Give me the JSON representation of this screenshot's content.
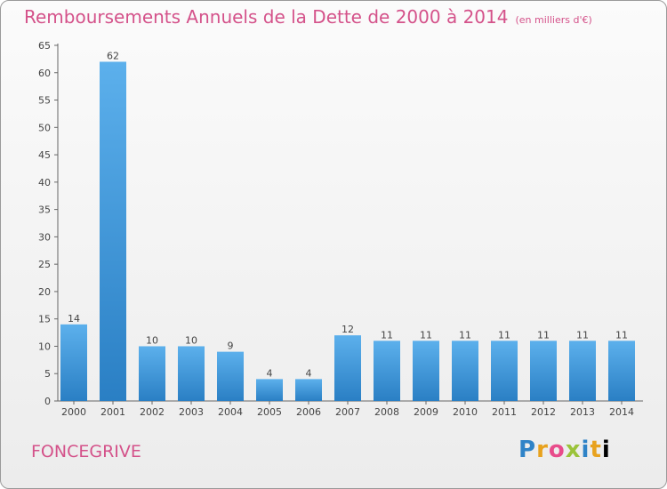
{
  "title": "Remboursements Annuels de la Dette de 2000 à 2014",
  "unit_note": "(en milliers d'€)",
  "commune": "FONCEGRIVE",
  "logo_text": "Proxiti",
  "colors": {
    "title": "#d4528a",
    "bar_light": "#5aaeea",
    "bar_dark": "#2a7fc4",
    "axis": "#555555",
    "grid": "#dddddd"
  },
  "chart_data": {
    "type": "bar",
    "title": "Remboursements Annuels de la Dette de 2000 à 2014",
    "xlabel": "",
    "ylabel": "",
    "categories": [
      "2000",
      "2001",
      "2002",
      "2003",
      "2004",
      "2005",
      "2006",
      "2007",
      "2008",
      "2009",
      "2010",
      "2011",
      "2012",
      "2013",
      "2014"
    ],
    "values": [
      14,
      62,
      10,
      10,
      9,
      4,
      4,
      12,
      11,
      11,
      11,
      11,
      11,
      11,
      11
    ],
    "ylim": [
      0,
      65
    ],
    "yticks": [
      0,
      5,
      10,
      15,
      20,
      25,
      30,
      35,
      40,
      45,
      50,
      55,
      60,
      65
    ],
    "grid": false,
    "legend": "none"
  }
}
